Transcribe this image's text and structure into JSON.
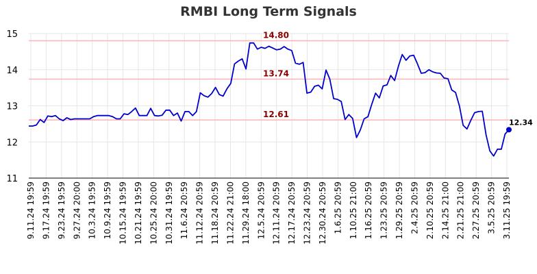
{
  "chart_data": {
    "type": "line",
    "title": "RMBI Long Term Signals",
    "ylim": [
      11,
      15
    ],
    "yticks": [
      "11",
      "12",
      "13",
      "14",
      "15"
    ],
    "xticks": [
      "9.11.24 19:59",
      "9.17.24 19:59",
      "9.23.24 19:59",
      "9.27.24 20:00",
      "10.3.24 19:59",
      "10.9.24 19:59",
      "10.15.24 19:59",
      "10.21.24 19:59",
      "10.25.24 20:00",
      "10.31.24 19:59",
      "11.6.24 20:59",
      "11.12.24 20:59",
      "11.18.24 20:59",
      "11.22.24 21:00",
      "11.29.24 18:00",
      "12.5.24 20:59",
      "12.11.24 20:59",
      "12.17.24 20:59",
      "12.23.24 20:59",
      "12.30.24 20:59",
      "1.6.25 20:59",
      "1.10.25 21:00",
      "1.16.25 20:59",
      "1.23.25 20:59",
      "1.29.25 20:59",
      "2.4.25 20:59",
      "2.10.25 20:59",
      "2.14.25 21:00",
      "2.21.25 21:00",
      "2.27.25 20:59",
      "3.5.25 20:59",
      "3.11.25 19:59"
    ],
    "reference_lines": [
      {
        "value": 14.8,
        "label": "14.80"
      },
      {
        "value": 13.74,
        "label": "13.74"
      },
      {
        "value": 12.61,
        "label": "12.61"
      }
    ],
    "last_point": {
      "value": 12.34,
      "label": "12.34"
    },
    "grid": true,
    "line_color": "#0000cc",
    "ref_color": "#ffb3b3",
    "values": [
      12.44,
      12.44,
      12.47,
      12.62,
      12.54,
      12.72,
      12.7,
      12.73,
      12.64,
      12.59,
      12.67,
      12.62,
      12.64,
      12.64,
      12.64,
      12.64,
      12.64,
      12.7,
      12.73,
      12.73,
      12.73,
      12.73,
      12.7,
      12.64,
      12.64,
      12.78,
      12.76,
      12.84,
      12.94,
      12.73,
      12.73,
      12.73,
      12.93,
      12.73,
      12.72,
      12.74,
      12.88,
      12.88,
      12.73,
      12.8,
      12.58,
      12.84,
      12.84,
      12.73,
      12.84,
      13.36,
      13.28,
      13.24,
      13.34,
      13.51,
      13.31,
      13.27,
      13.47,
      13.62,
      14.16,
      14.24,
      14.3,
      14.02,
      14.74,
      14.74,
      14.57,
      14.62,
      14.59,
      14.65,
      14.6,
      14.55,
      14.57,
      14.64,
      14.57,
      14.53,
      14.18,
      14.15,
      14.2,
      13.35,
      13.38,
      13.54,
      13.57,
      13.47,
      13.99,
      13.74,
      13.2,
      13.18,
      13.12,
      12.62,
      12.76,
      12.65,
      12.12,
      12.33,
      12.64,
      12.7,
      13.04,
      13.35,
      13.22,
      13.55,
      13.58,
      13.84,
      13.7,
      14.1,
      14.42,
      14.26,
      14.38,
      14.4,
      14.16,
      13.9,
      13.92,
      14.0,
      13.94,
      13.91,
      13.9,
      13.77,
      13.75,
      13.44,
      13.37,
      13.0,
      12.46,
      12.36,
      12.6,
      12.81,
      12.84,
      12.85,
      12.2,
      11.75,
      11.61,
      11.8,
      11.8,
      12.22,
      12.34
    ]
  }
}
